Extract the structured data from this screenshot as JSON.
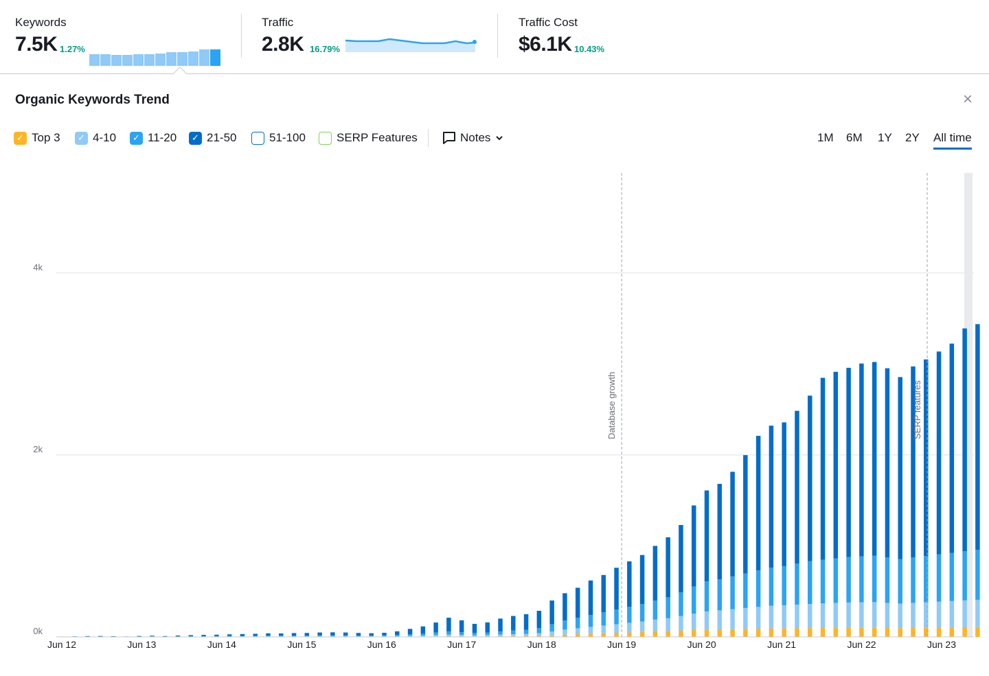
{
  "metrics": {
    "keywords": {
      "label": "Keywords",
      "value": "7.5K",
      "delta": "1.27%",
      "sparkline_bars": [
        0.72,
        0.72,
        0.68,
        0.68,
        0.72,
        0.72,
        0.75,
        0.85,
        0.85,
        0.88,
        0.98,
        1.0
      ]
    },
    "traffic": {
      "label": "Traffic",
      "value": "2.8K",
      "delta": "16.79%"
    },
    "traffic_cost": {
      "label": "Traffic Cost",
      "value": "$6.1K",
      "delta": "10.43%"
    }
  },
  "panel": {
    "title": "Organic Keywords Trend",
    "close_icon": "close-icon",
    "filters": [
      {
        "label": "Top 3",
        "checked": true,
        "color": "#ffb524",
        "filled": true
      },
      {
        "label": "4-10",
        "checked": true,
        "color": "#8fcaf8",
        "filled": true
      },
      {
        "label": "11-20",
        "checked": true,
        "color": "#2aa4f4",
        "filled": true
      },
      {
        "label": "21-50",
        "checked": true,
        "color": "#006dca",
        "filled": true
      },
      {
        "label": "51-100",
        "checked": false,
        "color": "#006dca",
        "filled": false
      },
      {
        "label": "SERP Features",
        "checked": false,
        "color": "#7fd35e",
        "filled": false
      }
    ],
    "notes_label": "Notes",
    "ranges": [
      {
        "label": "1M",
        "active": false
      },
      {
        "label": "6M",
        "active": false
      },
      {
        "label": "1Y",
        "active": false
      },
      {
        "label": "2Y",
        "active": false
      },
      {
        "label": "All time",
        "active": true
      }
    ]
  },
  "chart_data": {
    "type": "bar",
    "stacked": true,
    "ylim": [
      0,
      5100
    ],
    "yticks": [
      "0k",
      "2k",
      "4k"
    ],
    "ytick_values": [
      0,
      2000,
      4000
    ],
    "xticks": [
      "Jun 12",
      "Jun 13",
      "Jun 14",
      "Jun 15",
      "Jun 16",
      "Jun 17",
      "Jun 18",
      "Jun 19",
      "Jun 20",
      "Jun 21",
      "Jun 22",
      "Jun 23"
    ],
    "x_start_year": 2012,
    "x_end_year": 2023.45,
    "annotations": [
      {
        "label": "Database growth",
        "x": 2019.0
      },
      {
        "label": "SERP features",
        "x": 2022.82
      }
    ],
    "colors": {
      "top3": "#ffb524",
      "r4_10": "#8fcaf8",
      "r11_20": "#2aa4f4",
      "r21_50": "#006dca"
    },
    "series": [
      {
        "name": "21-50",
        "values": [
          3,
          4,
          5,
          6,
          5,
          4,
          6,
          8,
          6,
          10,
          12,
          14,
          16,
          18,
          20,
          22,
          25,
          24,
          27,
          28,
          30,
          32,
          30,
          28,
          26,
          28,
          40,
          60,
          80,
          110,
          150,
          130,
          100,
          110,
          140,
          160,
          170,
          190,
          260,
          300,
          330,
          380,
          410,
          460,
          500,
          540,
          600,
          660,
          740,
          890,
          1000,
          1050,
          1150,
          1300,
          1480,
          1560,
          1580,
          1680,
          1820,
          2000,
          2050,
          2080,
          2120,
          2130,
          2080,
          2000,
          2100,
          2160,
          2230,
          2300,
          2450,
          2480
        ]
      },
      {
        "name": "11-20",
        "values": [
          1,
          1,
          2,
          2,
          2,
          1,
          2,
          3,
          2,
          3,
          4,
          5,
          5,
          6,
          6,
          7,
          8,
          8,
          9,
          9,
          10,
          10,
          10,
          9,
          8,
          9,
          12,
          16,
          20,
          28,
          35,
          30,
          25,
          28,
          35,
          40,
          45,
          55,
          80,
          100,
          115,
          130,
          145,
          160,
          175,
          190,
          210,
          230,
          260,
          300,
          330,
          340,
          360,
          380,
          400,
          420,
          430,
          450,
          470,
          480,
          490,
          500,
          505,
          510,
          500,
          490,
          500,
          510,
          520,
          530,
          540,
          550
        ]
      },
      {
        "name": "4-10",
        "values": [
          0,
          1,
          1,
          1,
          1,
          0,
          1,
          1,
          1,
          1,
          2,
          2,
          2,
          3,
          3,
          3,
          4,
          4,
          4,
          4,
          5,
          5,
          5,
          4,
          4,
          5,
          6,
          8,
          10,
          14,
          18,
          15,
          12,
          14,
          18,
          20,
          22,
          28,
          40,
          55,
          65,
          75,
          85,
          95,
          105,
          115,
          130,
          140,
          160,
          180,
          200,
          210,
          220,
          230,
          240,
          250,
          255,
          260,
          265,
          270,
          275,
          278,
          280,
          282,
          275,
          270,
          275,
          280,
          285,
          290,
          295,
          300
        ]
      },
      {
        "name": "Top 3",
        "values": [
          0,
          0,
          1,
          1,
          0,
          0,
          1,
          1,
          0,
          1,
          1,
          1,
          1,
          1,
          2,
          2,
          2,
          2,
          2,
          2,
          3,
          3,
          3,
          2,
          2,
          3,
          3,
          4,
          5,
          6,
          8,
          7,
          6,
          7,
          8,
          10,
          12,
          14,
          20,
          25,
          30,
          35,
          40,
          45,
          50,
          55,
          60,
          65,
          70,
          75,
          80,
          82,
          85,
          88,
          90,
          92,
          93,
          95,
          97,
          98,
          99,
          100,
          100,
          100,
          98,
          96,
          98,
          100,
          102,
          104,
          106,
          108
        ]
      }
    ]
  }
}
